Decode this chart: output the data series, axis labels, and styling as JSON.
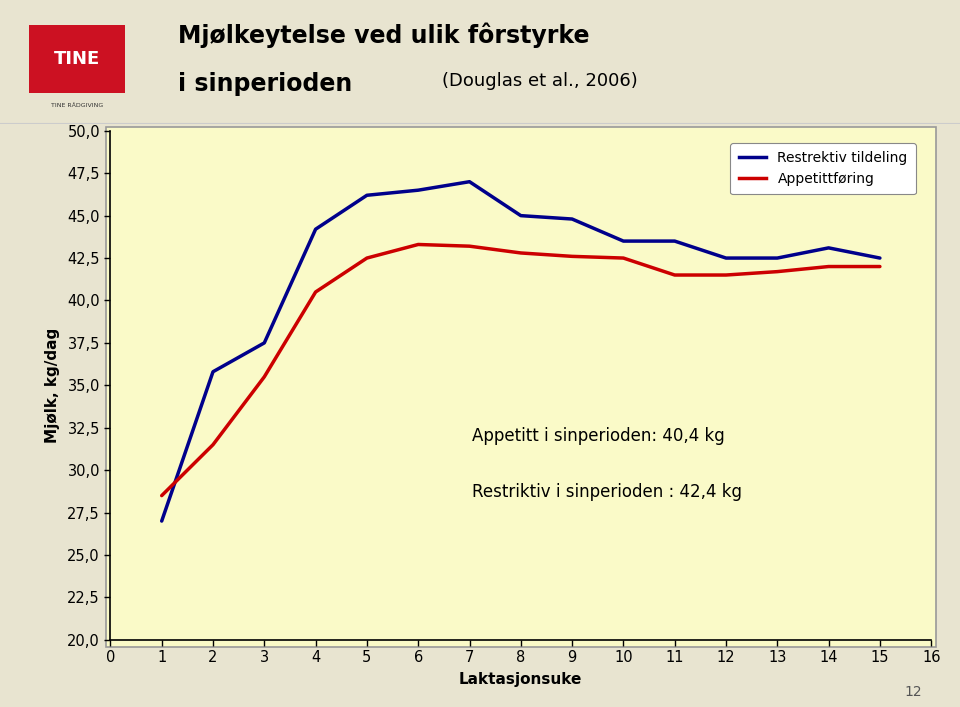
{
  "title_line1": "Mjølkeytelse ved ulik fôrstyrke",
  "title_line2": "i sinperioden",
  "title_subtitle": "(Douglas et al., 2006)",
  "xlabel": "Laktasjonsuke",
  "ylabel": "Mjølk, kg/dag",
  "ylim": [
    20.0,
    50.0
  ],
  "xlim": [
    0,
    16
  ],
  "yticks": [
    20.0,
    22.5,
    25.0,
    27.5,
    30.0,
    32.5,
    35.0,
    37.5,
    40.0,
    42.5,
    45.0,
    47.5,
    50.0
  ],
  "xticks": [
    0,
    1,
    2,
    3,
    4,
    5,
    6,
    7,
    8,
    9,
    10,
    11,
    12,
    13,
    14,
    15,
    16
  ],
  "restriktiv_x": [
    1,
    2,
    3,
    4,
    5,
    6,
    7,
    8,
    9,
    10,
    11,
    12,
    13,
    14,
    15
  ],
  "restriktiv_y": [
    27.0,
    35.8,
    37.5,
    44.2,
    46.2,
    46.5,
    47.0,
    45.0,
    44.8,
    43.5,
    43.5,
    42.5,
    42.5,
    43.1,
    42.5
  ],
  "appetitt_x": [
    1,
    2,
    3,
    4,
    5,
    6,
    7,
    8,
    9,
    10,
    11,
    12,
    13,
    14,
    15
  ],
  "appetitt_y": [
    28.5,
    31.5,
    35.5,
    40.5,
    42.5,
    43.3,
    43.2,
    42.8,
    42.6,
    42.5,
    41.5,
    41.5,
    41.7,
    42.0,
    42.0
  ],
  "restriktiv_color": "#00008B",
  "appetitt_color": "#CC0000",
  "line_width": 2.5,
  "plot_bg_color": "#FAFAC8",
  "outer_bg_color": "#E8E4D0",
  "header_bg_color": "#FFFFFF",
  "header_sep_color": "#CCCCCC",
  "legend_label_restriktiv": "Restrektiv tildeling",
  "legend_label_appetitt": "Appetittføring",
  "annotation1": "Appetitt i sinperioden: 40,4 kg",
  "annotation2": "Restriktiv i sinperioden : 42,4 kg",
  "page_number": "12",
  "chart_border_color": "#888888"
}
